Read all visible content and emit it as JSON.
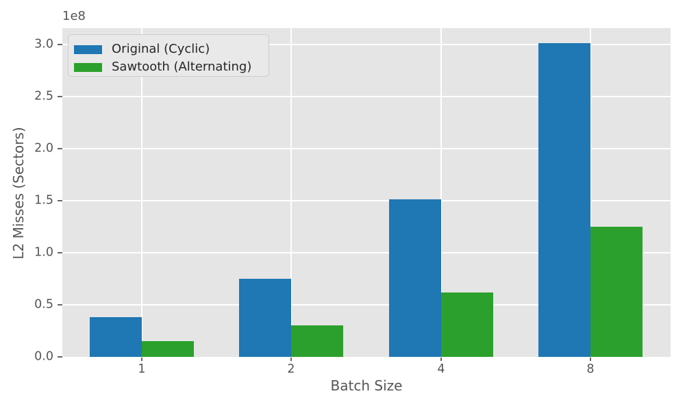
{
  "chart_data": {
    "type": "bar",
    "categories": [
      "1",
      "2",
      "4",
      "8"
    ],
    "series": [
      {
        "name": "Original (Cyclic)",
        "color": "#1f77b4",
        "values": [
          38000000,
          75000000,
          151000000,
          301000000
        ]
      },
      {
        "name": "Sawtooth (Alternating)",
        "color": "#2ca02c",
        "values": [
          15000000,
          30500000,
          62000000,
          125000000
        ]
      }
    ],
    "title": "",
    "xlabel": "Batch Size",
    "ylabel": "L2 Misses (Sectors)",
    "y_offset_text": "1e8",
    "ytick_values": [
      0,
      50000000,
      100000000,
      150000000,
      200000000,
      250000000,
      300000000
    ],
    "ytick_labels": [
      "0.0",
      "0.5",
      "1.0",
      "1.5",
      "2.0",
      "2.5",
      "3.0"
    ],
    "ylim": [
      0,
      315500000
    ],
    "grid": true,
    "gridline_color": "#ffffff",
    "plot_background": "#e5e5e5",
    "legend_position": "upper left"
  }
}
